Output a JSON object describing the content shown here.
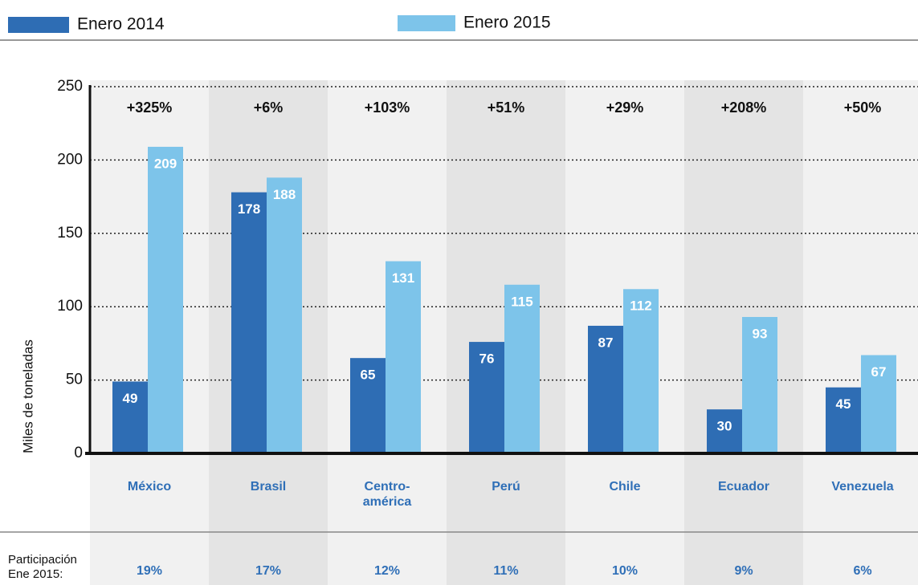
{
  "chart_data": {
    "type": "bar",
    "y_label": "Miles de toneladas",
    "categories": [
      "México",
      "Brasil",
      "Centro-\namérica",
      "Perú",
      "Chile",
      "Ecuador",
      "Venezuela"
    ],
    "series": [
      {
        "name": "Enero 2014",
        "color": "#2e6db4",
        "values": [
          49,
          178,
          65,
          76,
          87,
          30,
          45
        ]
      },
      {
        "name": "Enero 2015",
        "color": "#7dc4ea",
        "values": [
          209,
          188,
          131,
          115,
          112,
          93,
          67
        ]
      }
    ],
    "changes": [
      "+325%",
      "+6%",
      "+103%",
      "+51%",
      "+29%",
      "+208%",
      "+50%"
    ],
    "participation": {
      "label": "Participación\nEne 2015:",
      "values": [
        "19%",
        "17%",
        "12%",
        "11%",
        "10%",
        "9%",
        "6%"
      ]
    },
    "ylim": [
      0,
      250
    ],
    "yticks": [
      0,
      50,
      100,
      150,
      200,
      250
    ],
    "grid": true
  }
}
